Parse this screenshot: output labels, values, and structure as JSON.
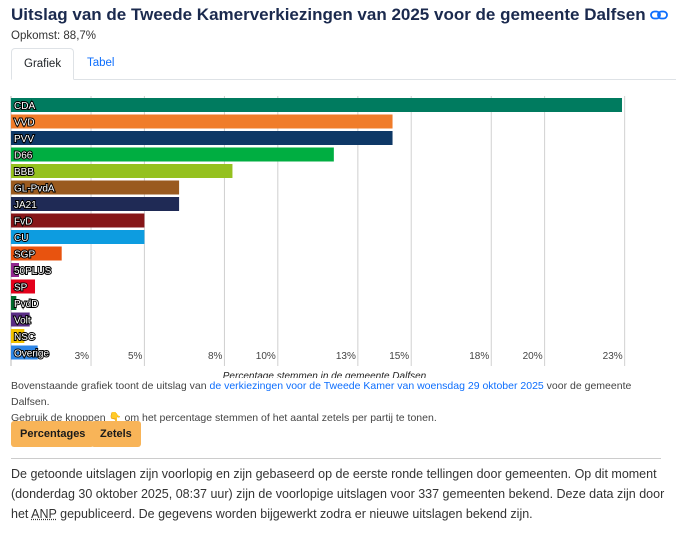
{
  "header": {
    "title": "Uitslag van de Tweede Kamerverkiezingen van 2025 voor de gemeente Dalfsen",
    "turnout": "Opkomst: 88,7%"
  },
  "tabs": [
    {
      "label": "Grafiek",
      "active": true
    },
    {
      "label": "Tabel",
      "active": false
    }
  ],
  "chart_data": {
    "type": "bar",
    "orientation": "horizontal",
    "categories": [
      "CDA",
      "VVD",
      "PVV",
      "D66",
      "BBB",
      "GL-PvdA",
      "JA21",
      "FvD",
      "CU",
      "SGP",
      "50PLUS",
      "SP",
      "PvdD",
      "Volt",
      "NSC",
      "Overige"
    ],
    "values": [
      22.9,
      14.3,
      14.3,
      12.1,
      8.3,
      6.3,
      6.3,
      5.0,
      5.0,
      1.9,
      0.3,
      0.9,
      0.2,
      0.7,
      0.5,
      1.0
    ],
    "colors": [
      "#007b5f",
      "#f07c2a",
      "#0e3866",
      "#00ae41",
      "#95c11f",
      "#9a5a1f",
      "#1f2a55",
      "#861618",
      "#0d9ce0",
      "#e8530f",
      "#92278f",
      "#e3001b",
      "#006b2d",
      "#582c83",
      "#f2c200",
      "#2e86e6"
    ],
    "xlabel": "Percentage stemmen in de gemeente Dalfsen",
    "xticks": [
      3,
      5,
      8,
      10,
      13,
      15,
      18,
      20,
      23
    ],
    "xtick_labels": [
      "3%",
      "5%",
      "8%",
      "10%",
      "13%",
      "15%",
      "18%",
      "20%",
      "23%"
    ],
    "xlim": [
      0,
      23.5
    ],
    "grid": true
  },
  "note": {
    "text_before": "Bovenstaande grafiek toont de uitslag van ",
    "link": "de verkiezingen voor de Tweede Kamer van woensdag 29 oktober 2025",
    "text_after": " voor de gemeente Dalfsen.",
    "line2_before": "Gebruik de knoppen ",
    "emoji": "👇",
    "line2_after": " om het percentage stemmen of het aantal zetels per partij te tonen."
  },
  "buttons": {
    "percentages": "Percentages",
    "seats": "Zetels"
  },
  "disclaimer": {
    "before": "De getoonde uitslagen zijn voorlopig en zijn gebaseerd op de eerste ronde tellingen door gemeenten. Op dit moment (donderdag 30 oktober 2025, 08:37 uur) zijn de voorlopige uitslagen voor 337 gemeenten bekend. Deze data zijn door het ",
    "abbr": "ANP",
    "after": " gepubliceerd. De gegevens worden bijgewerkt zodra er nieuwe uitslagen bekend zijn."
  }
}
